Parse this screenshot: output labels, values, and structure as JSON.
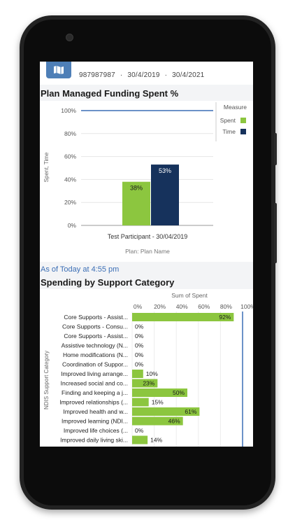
{
  "header": {
    "participant_id": "987987987",
    "start_date": "30/4/2019",
    "end_date": "30/4/2021",
    "separator": "·"
  },
  "funding_chart": {
    "title": "Plan Managed Funding Spent %",
    "chart_data": {
      "type": "bar",
      "title": "Plan Managed Funding Spent %",
      "categories": [
        "Test Participant - 30/04/2019"
      ],
      "series": [
        {
          "name": "Spent",
          "values": [
            38
          ],
          "color": "#8cc63f"
        },
        {
          "name": "Time",
          "values": [
            53
          ],
          "color": "#16325c"
        }
      ],
      "data_labels": [
        "38%",
        "53%"
      ],
      "ylabel": "Spent, Time",
      "xlabel": "Plan: Plan Name",
      "ylim": [
        0,
        100
      ],
      "yticks": [
        "0%",
        "20%",
        "40%",
        "60%",
        "80%",
        "100%"
      ],
      "reference_line": 100,
      "legend_title": "Measure",
      "legend_position": "right"
    }
  },
  "as_of": "As of Today at 4:55 pm",
  "support_chart": {
    "title": "Spending by Support Category",
    "chart_data": {
      "type": "bar",
      "orientation": "horizontal",
      "title": "Spending by Support Category",
      "xlabel": "Sum of Spent",
      "ylabel": "NDIS Support Category",
      "xlim": [
        0,
        100
      ],
      "xticks": [
        "0%",
        "20%",
        "40%",
        "60%",
        "80%",
        "100%"
      ],
      "reference_line": 100,
      "color": "#8cc63f",
      "line_color": "#3b6eb5",
      "categories": [
        "Core Supports - Assist...",
        "Core Supports - Consu...",
        "Core Supports - Assist...",
        "Assistive technology (N...",
        "Home modifications (N...",
        "Coordination of Suppor...",
        "Improved living arrange...",
        "Increased social and co...",
        "Finding and keeping a j...",
        "Improved relationships (...",
        "Improved health and w...",
        "Improved learning (NDI...",
        "Improved life choices (...",
        "Improved daily living ski..."
      ],
      "values": [
        92,
        0,
        0,
        0,
        0,
        0,
        10,
        23,
        50,
        15,
        61,
        46,
        0,
        14
      ],
      "data_labels": [
        "92%",
        "0%",
        "0%",
        "0%",
        "0%",
        "0%",
        "10%",
        "23%",
        "50%",
        "15%",
        "61%",
        "46%",
        "0%",
        "14%"
      ]
    }
  }
}
